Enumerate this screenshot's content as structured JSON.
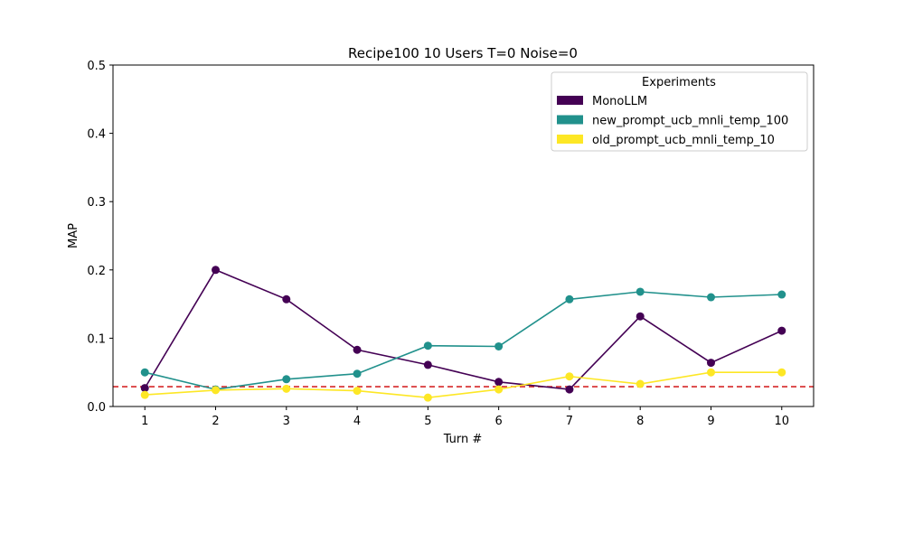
{
  "chart_data": {
    "type": "line",
    "title": "Recipe100 10 Users T=0 Noise=0",
    "xlabel": "Turn #",
    "ylabel": "MAP",
    "x": [
      1,
      2,
      3,
      4,
      5,
      6,
      7,
      8,
      9,
      10
    ],
    "xlim": [
      0.55,
      10.45
    ],
    "ylim": [
      0,
      0.5
    ],
    "yticks": [
      0.0,
      0.1,
      0.2,
      0.3,
      0.4,
      0.5
    ],
    "yticklabels": [
      "0.0",
      "0.1",
      "0.2",
      "0.3",
      "0.4",
      "0.5"
    ],
    "xticks": [
      1,
      2,
      3,
      4,
      5,
      6,
      7,
      8,
      9,
      10
    ],
    "xticklabels": [
      "1",
      "2",
      "3",
      "4",
      "5",
      "6",
      "7",
      "8",
      "9",
      "10"
    ],
    "grid": false,
    "legend": {
      "title": "Experiments",
      "placement": "top-right"
    },
    "series": [
      {
        "name": "MonoLLM",
        "color": "#440154",
        "values": [
          0.027,
          0.2,
          0.157,
          0.083,
          0.061,
          0.036,
          0.025,
          0.132,
          0.064,
          0.111
        ]
      },
      {
        "name": "new_prompt_ucb_mnli_temp_100",
        "color": "#21918c",
        "values": [
          0.05,
          0.025,
          0.04,
          0.048,
          0.089,
          0.088,
          0.157,
          0.168,
          0.16,
          0.164
        ]
      },
      {
        "name": "old_prompt_ucb_mnli_temp_10",
        "color": "#fde725",
        "values": [
          0.017,
          0.024,
          0.026,
          0.023,
          0.013,
          0.025,
          0.044,
          0.033,
          0.05,
          0.05
        ]
      }
    ],
    "reference_line": {
      "value": 0.029,
      "color": "#d62728",
      "style": "dashed"
    }
  }
}
